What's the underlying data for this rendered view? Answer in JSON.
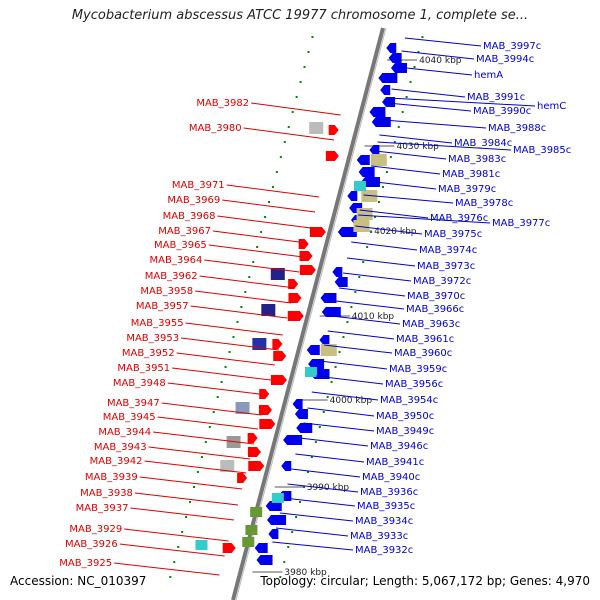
{
  "title": "Mycobacterium abscessus ATCC 19977 chromosome 1, complete se...",
  "accession": "Accession: NC_010397",
  "topology": "Topology: circular; Length: 5,067,172 bp; Genes: 4,970",
  "colors": {
    "left_label": "#dd0000",
    "right_label": "#0000cc",
    "forward_gene": "#ff0000",
    "reverse_gene": "#0000ee",
    "axis": "#888888",
    "tick": "#008800"
  },
  "kbp_marks": [
    "4040 kbp",
    "4030 kbp",
    "4020 kbp",
    "4010 kbp",
    "4000 kbp",
    "3990 kbp",
    "3980 kbp"
  ],
  "left_labels": [
    "MAB_3982",
    "MAB_3980",
    "MAB_3971",
    "MAB_3969",
    "MAB_3968",
    "MAB_3967",
    "MAB_3965",
    "MAB_3964",
    "MAB_3962",
    "MAB_3958",
    "MAB_3957",
    "MAB_3955",
    "MAB_3953",
    "MAB_3952",
    "MAB_3951",
    "MAB_3948",
    "MAB_3947",
    "MAB_3945",
    "MAB_3944",
    "MAB_3943",
    "MAB_3942",
    "MAB_3939",
    "MAB_3938",
    "MAB_3937",
    "MAB_3929",
    "MAB_3926",
    "MAB_3925"
  ],
  "right_labels": [
    "MAB_3997c",
    "MAB_3994c",
    "hemA",
    "MAB_3991c",
    "MAB_3990c",
    "hemC",
    "MAB_3988c",
    "MAB_3984c",
    "MAB_3985c",
    "MAB_3983c",
    "MAB_3981c",
    "MAB_3979c",
    "MAB_3978c",
    "MAB_3976c",
    "MAB_3977c",
    "MAB_3975c",
    "MAB_3974c",
    "MAB_3973c",
    "MAB_3972c",
    "MAB_3970c",
    "MAB_3966c",
    "MAB_3963c",
    "MAB_3961c",
    "MAB_3960c",
    "MAB_3959c",
    "MAB_3956c",
    "MAB_3954c",
    "MAB_3950c",
    "MAB_3949c",
    "MAB_3946c",
    "MAB_3941c",
    "MAB_3940c",
    "MAB_3936c",
    "MAB_3935c",
    "MAB_3934c",
    "MAB_3933c",
    "MAB_3932c"
  ]
}
